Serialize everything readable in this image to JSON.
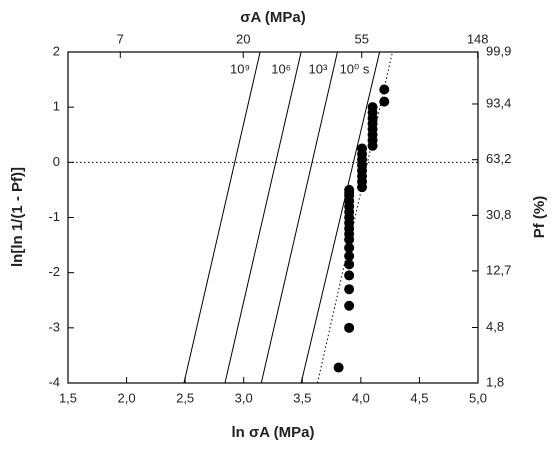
{
  "chart_data": {
    "type": "scatter",
    "xlabel": "ln σA (MPa)",
    "ylabel": "ln[ln 1/(1 - Pf)]",
    "x2label": "σA (MPa)",
    "y2label": "Pf (%)",
    "xlim": [
      1.5,
      5.0
    ],
    "xticks": [
      {
        "value": 1.5,
        "label": "1,5"
      },
      {
        "value": 2.0,
        "label": "2,0"
      },
      {
        "value": 2.5,
        "label": "2,5"
      },
      {
        "value": 3.0,
        "label": "3,0"
      },
      {
        "value": 3.5,
        "label": "3,5"
      },
      {
        "value": 4.0,
        "label": "4,0"
      },
      {
        "value": 4.5,
        "label": "4,5"
      },
      {
        "value": 5.0,
        "label": "5,0"
      }
    ],
    "ylim": [
      -4,
      2
    ],
    "yticks": [
      -4,
      -3,
      -2,
      -1,
      0,
      1,
      2
    ],
    "x2scale": "log",
    "x2lim": [
      4.48,
      148.41
    ],
    "x2ticks": [
      7,
      20,
      55,
      148
    ],
    "y2scale": "weibull",
    "y2lim": [
      1.8,
      99.9
    ],
    "y2ticks": [
      {
        "value": 1.8,
        "label": "1,8"
      },
      {
        "value": 4.8,
        "label": "4,8"
      },
      {
        "value": 12.7,
        "label": "12,7"
      },
      {
        "value": 30.8,
        "label": "30,8"
      },
      {
        "value": 63.2,
        "label": "63,2"
      },
      {
        "value": 93.4,
        "label": "93,4"
      },
      {
        "value": 99.9,
        "label": "99,9"
      }
    ],
    "hlines": [
      0
    ],
    "series": [
      {
        "name": "10⁹",
        "kind": "line",
        "color": "#000000",
        "x": [
          2.49,
          3.14
        ],
        "values": [
          -4,
          2
        ]
      },
      {
        "name": "10⁶",
        "kind": "line",
        "color": "#000000",
        "x": [
          2.84,
          3.49
        ],
        "values": [
          -4,
          2
        ]
      },
      {
        "name": "10³",
        "kind": "line",
        "color": "#000000",
        "x": [
          3.15,
          3.8
        ],
        "values": [
          -4,
          2
        ]
      },
      {
        "name": "10⁰ s",
        "kind": "line",
        "color": "#000000",
        "x": [
          3.49,
          4.16
        ],
        "values": [
          -4,
          2
        ]
      },
      {
        "kind": "line",
        "dash": "dotted",
        "color": "#000000",
        "x": [
          3.63,
          4.27
        ],
        "values": [
          -4,
          2
        ]
      },
      {
        "kind": "points",
        "color": "#000000",
        "x": [
          3.81,
          3.9,
          3.9,
          3.9,
          3.9,
          3.9,
          3.9,
          3.9,
          3.9,
          3.9,
          3.9,
          3.9,
          3.9,
          3.9,
          3.9,
          3.9,
          3.9,
          3.9,
          3.9,
          4.01,
          4.01,
          4.01,
          4.01,
          4.01,
          4.01,
          4.01,
          4.01,
          4.1,
          4.1,
          4.1,
          4.1,
          4.1,
          4.1,
          4.1,
          4.1,
          4.2,
          4.2
        ],
        "values": [
          -3.72,
          -3.0,
          -2.6,
          -2.3,
          -2.05,
          -1.85,
          -1.7,
          -1.55,
          -1.4,
          -1.3,
          -1.2,
          -1.1,
          -1.0,
          -0.9,
          -0.8,
          -0.7,
          -0.6,
          -0.5,
          -0.55,
          -0.45,
          -0.35,
          -0.25,
          -0.15,
          -0.05,
          0.05,
          0.15,
          0.25,
          0.3,
          0.4,
          0.5,
          0.6,
          0.7,
          0.8,
          0.9,
          1.0,
          1.1,
          1.32
        ]
      }
    ]
  }
}
